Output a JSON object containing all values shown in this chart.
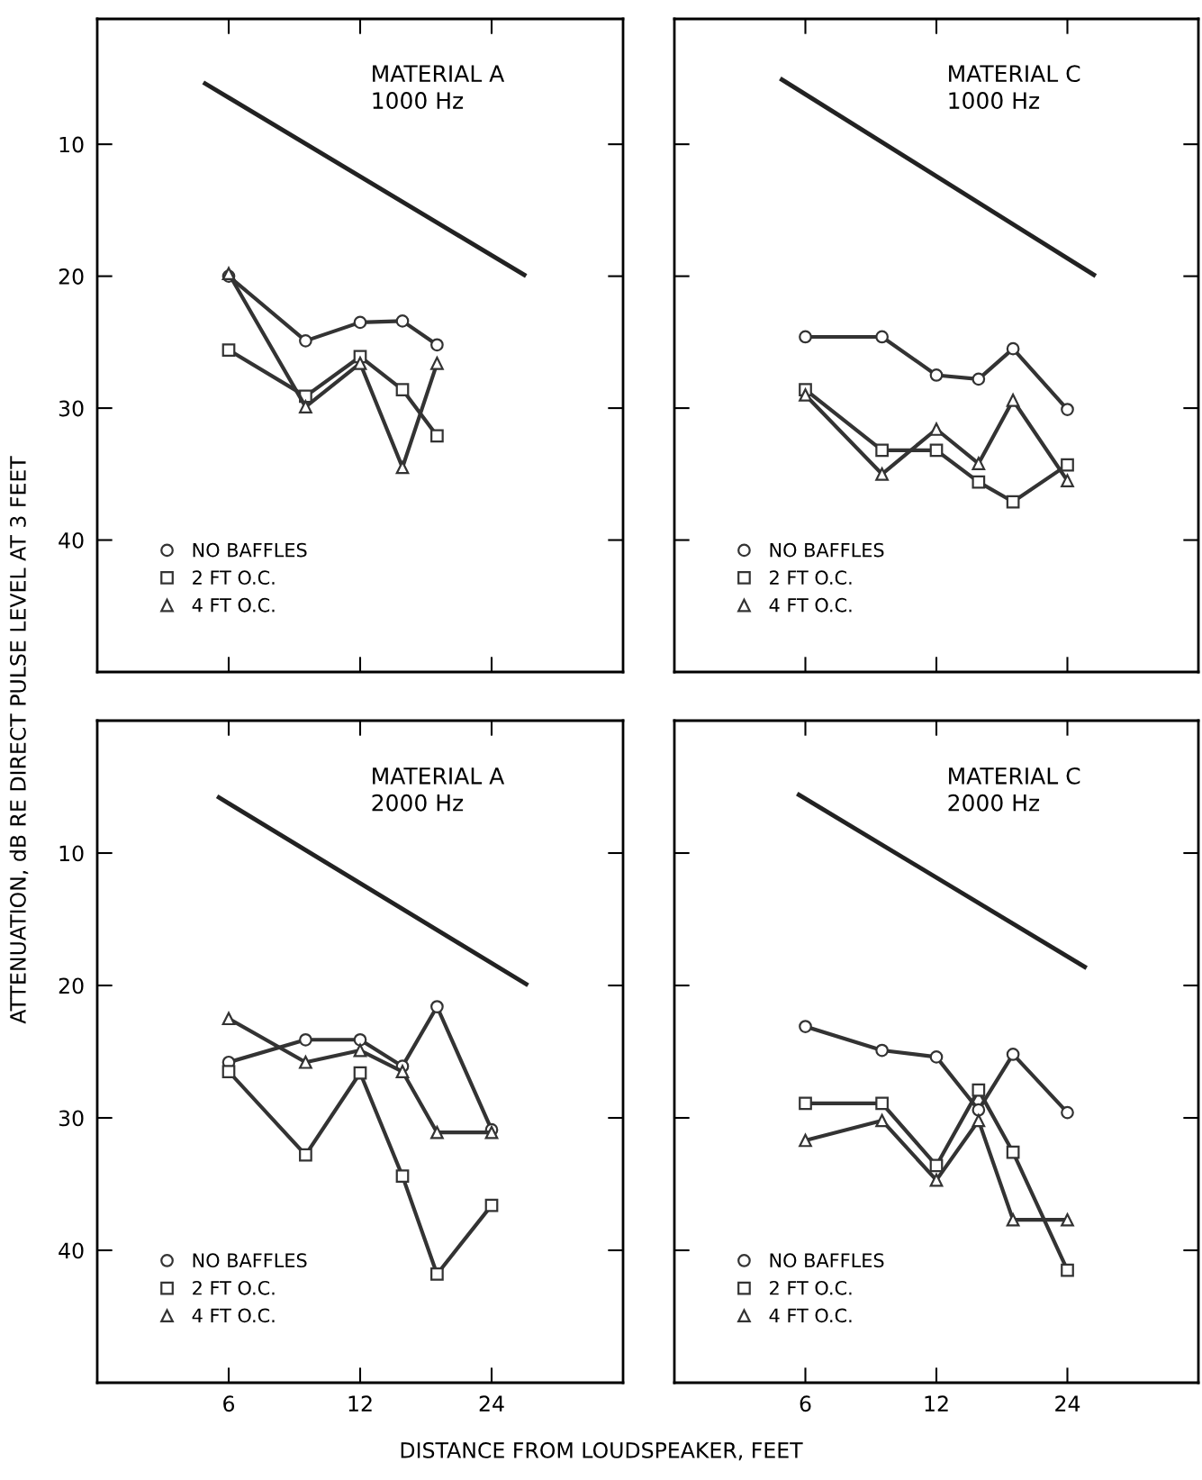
{
  "chart_data": [
    {
      "type": "line",
      "title": "MATERIAL A\n1000 Hz",
      "ylabel": "ATTENUATION, dB RE DIRECT PULSE LEVEL AT 3 FEET",
      "log": "x",
      "xlim": [
        3,
        48
      ],
      "xticks": [
        6,
        12,
        24
      ],
      "ylim": [
        50,
        0.5
      ],
      "yticks": [
        10,
        20,
        30,
        40
      ],
      "tick_labels": "y",
      "grid": false,
      "legend": "bottom left",
      "line_style": "solid",
      "series": [
        {
          "name": "NO BAFFLES",
          "color": "#333333",
          "marker": "circle",
          "x": [
            6,
            9,
            12,
            15,
            18
          ],
          "values": [
            20,
            24.9,
            23.5,
            23.4,
            25.2
          ]
        },
        {
          "name": "2 FT O.C.",
          "color": "#333333",
          "marker": "square",
          "x": [
            6,
            9,
            12,
            15,
            18
          ],
          "values": [
            25.6,
            29.1,
            26.1,
            28.6,
            32.1
          ]
        },
        {
          "name": "4 FT O.C.",
          "color": "#333333",
          "marker": "triangle",
          "x": [
            6,
            9,
            12,
            15,
            18
          ],
          "values": [
            19.8,
            29.9,
            26.6,
            34.5,
            26.6
          ]
        },
        {
          "type": "line",
          "color": "#222222",
          "marker": "none",
          "x": [
            5.3,
            28.5
          ],
          "values": [
            5.4,
            19.9
          ]
        }
      ]
    },
    {
      "type": "line",
      "title": "MATERIAL C\n1000 Hz",
      "log": "x",
      "xlim": [
        3,
        48
      ],
      "xticks": [
        6,
        12,
        24
      ],
      "ylim": [
        50,
        0.5
      ],
      "yticks": [
        10,
        20,
        30,
        40
      ],
      "tick_labels": false,
      "grid": false,
      "legend": "bottom left",
      "line_style": "solid",
      "series": [
        {
          "name": "NO BAFFLES",
          "color": "#333333",
          "marker": "circle",
          "x": [
            6,
            9,
            12,
            15,
            18,
            24
          ],
          "values": [
            24.6,
            24.6,
            27.5,
            27.8,
            25.5,
            30.1
          ]
        },
        {
          "name": "2 FT O.C.",
          "color": "#333333",
          "marker": "square",
          "x": [
            6,
            9,
            12,
            15,
            18,
            24
          ],
          "values": [
            28.6,
            33.2,
            33.2,
            35.6,
            37.1,
            34.3
          ]
        },
        {
          "name": "4 FT O.C.",
          "color": "#333333",
          "marker": "triangle",
          "x": [
            6,
            9,
            12,
            15,
            18,
            24
          ],
          "values": [
            29,
            35,
            31.6,
            34.2,
            29.4,
            35.5
          ]
        },
        {
          "type": "line",
          "color": "#222222",
          "marker": "none",
          "x": [
            5.3,
            27.6
          ],
          "values": [
            5.1,
            19.9
          ]
        }
      ]
    },
    {
      "type": "line",
      "title": "MATERIAL A\n2000 Hz",
      "xlabel": "DISTANCE FROM LOUDSPEAKER, FEET",
      "log": "x",
      "xlim": [
        3,
        48
      ],
      "xticks": [
        6,
        12,
        24
      ],
      "ylim": [
        50,
        0
      ],
      "yticks": [
        10,
        20,
        30,
        40
      ],
      "grid": false,
      "legend": "bottom left",
      "line_style": "solid",
      "series": [
        {
          "name": "NO BAFFLES",
          "color": "#333333",
          "marker": "circle",
          "x": [
            6,
            9,
            12,
            15,
            18,
            24
          ],
          "values": [
            25.8,
            24.1,
            24.1,
            26.1,
            21.6,
            30.9
          ]
        },
        {
          "name": "2 FT O.C.",
          "color": "#333333",
          "marker": "square",
          "x": [
            6,
            9,
            12,
            15,
            18,
            24
          ],
          "values": [
            26.5,
            32.8,
            26.6,
            34.4,
            41.8,
            36.6
          ]
        },
        {
          "name": "4 FT O.C.",
          "color": "#333333",
          "marker": "triangle",
          "x": [
            6,
            9,
            12,
            15,
            18,
            24
          ],
          "values": [
            22.5,
            25.8,
            24.9,
            26.5,
            31.1,
            31.1
          ]
        },
        {
          "type": "line",
          "color": "#222222",
          "marker": "none",
          "x": [
            5.7,
            28.8
          ],
          "values": [
            5.8,
            19.9
          ]
        }
      ]
    },
    {
      "type": "line",
      "title": "MATERIAL C\n2000 Hz",
      "log": "x",
      "xlim": [
        3,
        48
      ],
      "xticks": [
        6,
        12,
        24
      ],
      "ylim": [
        50,
        0
      ],
      "yticks": [
        10,
        20,
        30,
        40
      ],
      "tick_labels": "x",
      "grid": false,
      "legend": "bottom left",
      "line_style": "solid",
      "series": [
        {
          "name": "NO BAFFLES",
          "color": "#333333",
          "marker": "circle",
          "x": [
            6,
            9,
            12,
            15,
            18,
            24
          ],
          "values": [
            23.1,
            24.9,
            25.4,
            29.4,
            25.2,
            29.6
          ]
        },
        {
          "name": "2 FT O.C.",
          "color": "#333333",
          "marker": "square",
          "x": [
            6,
            9,
            12,
            15,
            18,
            24
          ],
          "values": [
            28.9,
            28.9,
            33.6,
            27.9,
            32.6,
            41.5
          ]
        },
        {
          "name": "4 FT O.C.",
          "color": "#333333",
          "marker": "triangle",
          "x": [
            6,
            9,
            12,
            15,
            18,
            24
          ],
          "values": [
            31.7,
            30.2,
            34.7,
            30.2,
            37.7,
            37.7
          ]
        },
        {
          "type": "line",
          "color": "#222222",
          "marker": "none",
          "x": [
            5.8,
            26.3
          ],
          "values": [
            5.6,
            18.6
          ]
        }
      ]
    }
  ]
}
